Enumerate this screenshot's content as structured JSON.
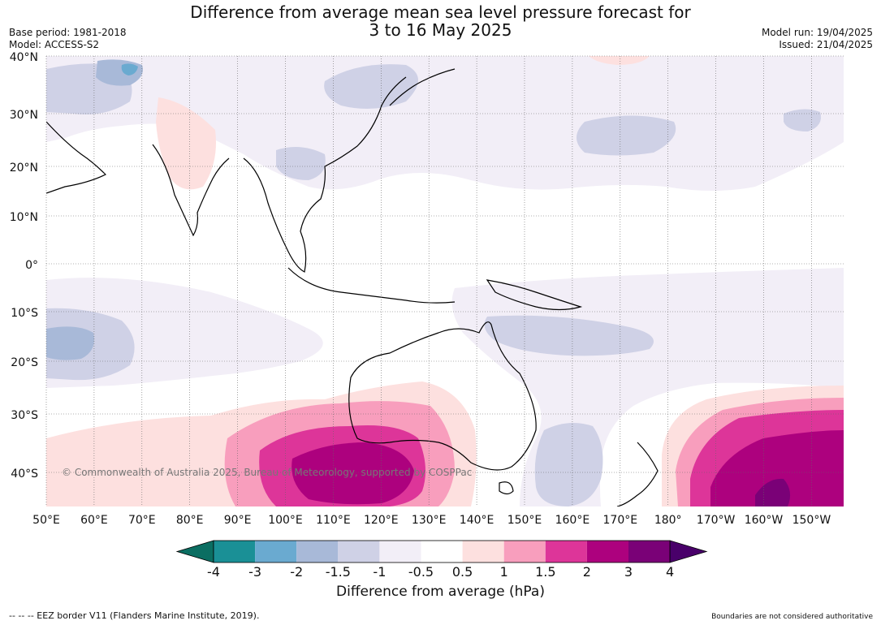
{
  "title": {
    "line1": "Difference from average mean sea level pressure forecast for",
    "line2": "3 to 16 May 2025"
  },
  "left_meta": {
    "base_period": "Base period: 1981-2018",
    "model": "Model: ACCESS-S2"
  },
  "right_meta": {
    "model_run": "Model run: 19/04/2025",
    "issued": "Issued: 21/04/2025"
  },
  "lat_labels": [
    "40°N",
    "30°N",
    "20°N",
    "10°N",
    "0°",
    "10°S",
    "20°S",
    "30°S",
    "40°S"
  ],
  "lon_labels": [
    "50°E",
    "60°E",
    "70°E",
    "80°E",
    "90°E",
    "100°E",
    "110°E",
    "120°E",
    "130°E",
    "140°E",
    "150°E",
    "160°E",
    "170°E",
    "180°",
    "170°W",
    "160°W",
    "150°W"
  ],
  "copyright": "© Commonwealth of Australia 2025, Bureau of Meteorology, supported by COSPPac",
  "colorbar": {
    "title": "Difference from average (hPa)",
    "tick_labels": [
      "-4",
      "-3",
      "-2",
      "-1.5",
      "-1",
      "-0.5",
      "0.5",
      "1",
      "1.5",
      "2",
      "3",
      "4"
    ],
    "colors": [
      "#1a9096",
      "#6aaad0",
      "#a8b9d8",
      "#cfd1e6",
      "#f2eef7",
      "#ffffff",
      "#fde0df",
      "#f89ebd",
      "#dd3599",
      "#ad017e",
      "#7a0177"
    ],
    "under_color": "#0b6e62",
    "over_color": "#49006a"
  },
  "footer": {
    "eez": "--  --  -- EEZ border V11 (Flanders Marine Institute, 2019).",
    "disclaimer": "Boundaries are not considered authoritative"
  }
}
